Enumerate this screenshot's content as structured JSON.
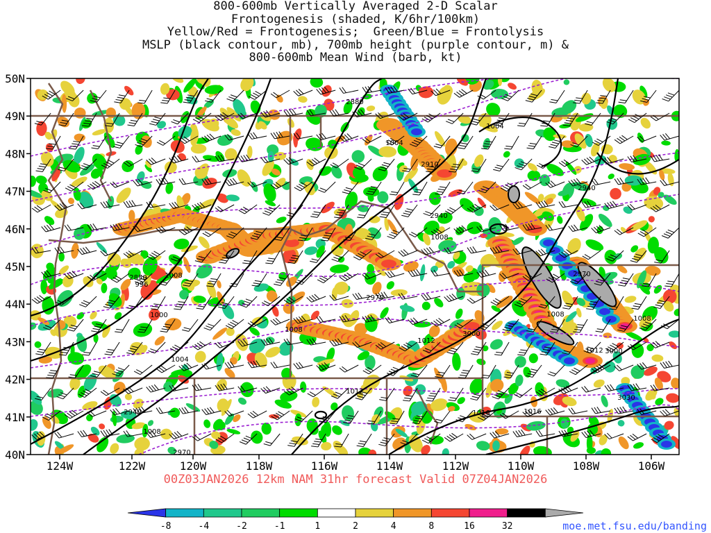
{
  "title_lines": [
    "800-600mb Vertically Averaged 2-D Scalar",
    "Frontogenesis (shaded, K/6hr/100km)",
    "Yellow/Red = Frontogenesis;  Green/Blue = Frontolysis",
    "MSLP (black contour, mb), 700mb height (purple contour, m) &",
    "800-600mb Mean Wind (barb, kt)"
  ],
  "valid_line": "00Z03JAN2026 12km NAM 31hr forecast Valid 07Z04JAN2026",
  "credit": "moe.met.fsu.edu/banding",
  "lat_labels": [
    "50N",
    "49N",
    "48N",
    "47N",
    "46N",
    "45N",
    "44N",
    "43N",
    "42N",
    "41N",
    "40N"
  ],
  "lon_labels": [
    "124W",
    "122W",
    "120W",
    "118W",
    "116W",
    "114W",
    "112W",
    "110W",
    "108W",
    "106W"
  ],
  "colorbar": {
    "labels": [
      "-8",
      "-4",
      "-2",
      "-1",
      "1",
      "2",
      "4",
      "8",
      "16",
      "32"
    ],
    "colors": [
      "#2a35e8",
      "#12b4c8",
      "#20c88c",
      "#20cc60",
      "#00dc00",
      "#ffffff",
      "#e6d23c",
      "#f09628",
      "#f54632",
      "#f01e8c",
      "#000000",
      "#aaaaaa"
    ]
  },
  "mslp_labels": [
    "1004",
    "1004",
    "1008",
    "996",
    "1000",
    "1004",
    "1008",
    "1008",
    "1012",
    "1012",
    "1012",
    "1008",
    "1016",
    "1016",
    "1008",
    "1008"
  ],
  "height_labels": [
    "2880",
    "2910",
    "2940",
    "2940",
    "2850",
    "2970",
    "3000",
    "2970",
    "3000",
    "3030",
    "2940",
    "2970"
  ],
  "colors": {
    "mslp": "#000000",
    "height": "#9b1fd1",
    "borders": "#7a5a4a",
    "frame": "#000000"
  }
}
